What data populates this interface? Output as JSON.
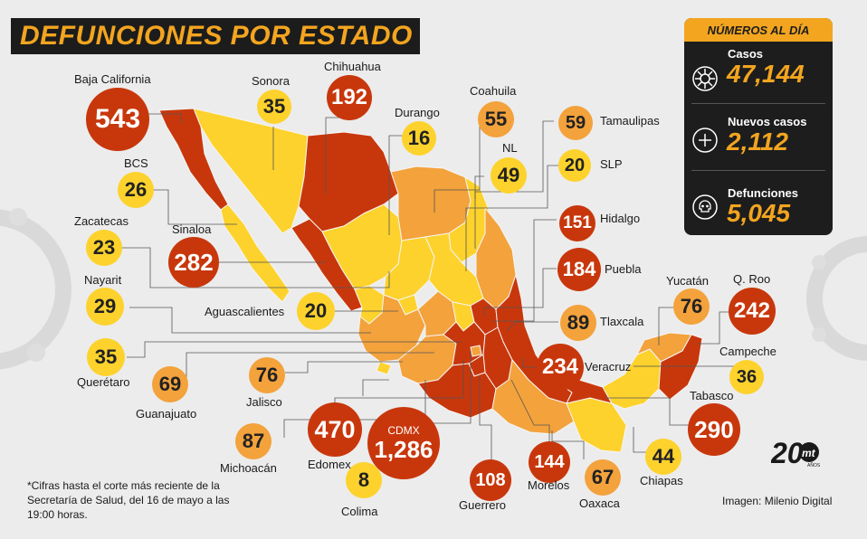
{
  "title": "DEFUNCIONES POR ESTADO",
  "colors": {
    "red": "#c8370c",
    "orange": "#f3a23c",
    "yellow": "#fdd22c",
    "dark": "#1d1d1d",
    "accent": "#f3a51f"
  },
  "summary": {
    "header": "NÚMEROS AL DÍA",
    "items": [
      {
        "icon": "virus-icon",
        "label": "Casos",
        "value": "47,144"
      },
      {
        "icon": "plus-circle-icon",
        "label": "Nuevos casos",
        "value": "2,112"
      },
      {
        "icon": "skull-icon",
        "label": "Defunciones",
        "value": "5,045"
      }
    ]
  },
  "states": [
    {
      "id": "baja-california",
      "name": "Baja California",
      "value": "543",
      "level": "red"
    },
    {
      "id": "sonora",
      "name": "Sonora",
      "value": "35",
      "level": "yellow"
    },
    {
      "id": "chihuahua",
      "name": "Chihuahua",
      "value": "192",
      "level": "red"
    },
    {
      "id": "durango",
      "name": "Durango",
      "value": "16",
      "level": "yellow"
    },
    {
      "id": "coahuila",
      "name": "Coahuila",
      "value": "55",
      "level": "orange"
    },
    {
      "id": "tamaulipas",
      "name": "Tamaulipas",
      "value": "59",
      "level": "orange"
    },
    {
      "id": "nl",
      "name": "NL",
      "value": "49",
      "level": "yellow"
    },
    {
      "id": "slp",
      "name": "SLP",
      "value": "20",
      "level": "yellow"
    },
    {
      "id": "bcs",
      "name": "BCS",
      "value": "26",
      "level": "yellow"
    },
    {
      "id": "zacatecas",
      "name": "Zacatecas",
      "value": "23",
      "level": "yellow"
    },
    {
      "id": "sinaloa",
      "name": "Sinaloa",
      "value": "282",
      "level": "red"
    },
    {
      "id": "hidalgo",
      "name": "Hidalgo",
      "value": "151",
      "level": "red"
    },
    {
      "id": "puebla",
      "name": "Puebla",
      "value": "184",
      "level": "red"
    },
    {
      "id": "nayarit",
      "name": "Nayarit",
      "value": "29",
      "level": "yellow"
    },
    {
      "id": "aguascalientes",
      "name": "Aguascalientes",
      "value": "20",
      "level": "yellow"
    },
    {
      "id": "yucatan",
      "name": "Yucatán",
      "value": "76",
      "level": "orange"
    },
    {
      "id": "q-roo",
      "name": "Q. Roo",
      "value": "242",
      "level": "red"
    },
    {
      "id": "tlaxcala",
      "name": "Tlaxcala",
      "value": "89",
      "level": "orange"
    },
    {
      "id": "queretaro",
      "name": "Querétaro",
      "value": "35",
      "level": "yellow"
    },
    {
      "id": "campeche",
      "name": "Campeche",
      "value": "36",
      "level": "yellow"
    },
    {
      "id": "veracruz",
      "name": "Veracruz",
      "value": "234",
      "level": "red"
    },
    {
      "id": "guanajuato",
      "name": "Guanajuato",
      "value": "69",
      "level": "orange"
    },
    {
      "id": "jalisco",
      "name": "Jalisco",
      "value": "76",
      "level": "orange"
    },
    {
      "id": "tabasco",
      "name": "Tabasco",
      "value": "290",
      "level": "red"
    },
    {
      "id": "edomex",
      "name": "Edomex",
      "value": "470",
      "level": "red"
    },
    {
      "id": "cdmx",
      "name": "CDMX",
      "value": "1,286",
      "level": "red"
    },
    {
      "id": "michoacan",
      "name": "Michoacán",
      "value": "87",
      "level": "orange"
    },
    {
      "id": "chiapas",
      "name": "Chiapas",
      "value": "44",
      "level": "yellow"
    },
    {
      "id": "morelos",
      "name": "Morelos",
      "value": "144",
      "level": "red"
    },
    {
      "id": "oaxaca",
      "name": "Oaxaca",
      "value": "67",
      "level": "orange"
    },
    {
      "id": "guerrero",
      "name": "Guerrero",
      "value": "108",
      "level": "red"
    },
    {
      "id": "colima",
      "name": "Colima",
      "value": "8",
      "level": "yellow"
    }
  ],
  "footnote": "*Cifras hasta el corte más reciente de la Secretaría de Salud, del 16 de mayo a las 19:00 horas.",
  "credit": "Imagen: Milenio Digital",
  "logo": {
    "number": "20",
    "brand": "mt",
    "small": "AÑOS"
  }
}
